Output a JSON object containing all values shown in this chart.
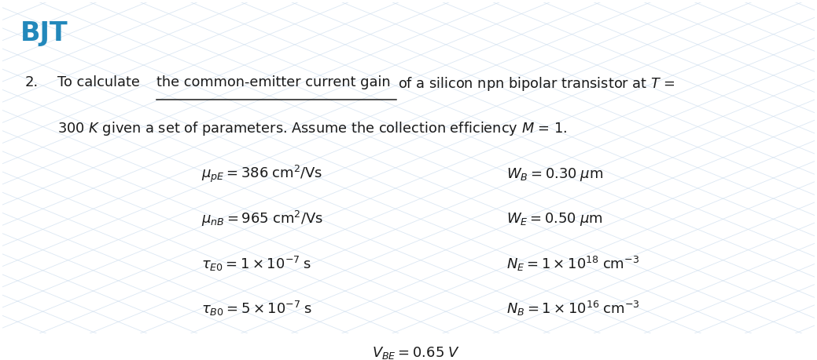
{
  "title": "BJT",
  "title_color": "#2288BB",
  "bg_color": "#FFFFFF",
  "grid_color": "#CCDDEE",
  "text_color": "#1a1a1a",
  "figsize": [
    10.39,
    4.59
  ],
  "dpi": 100,
  "left_params": [
    "$\\mu_{pE} = 386\\;\\mathrm{cm^2/Vs}$",
    "$\\mu_{nB} = 965\\;\\mathrm{cm^2/Vs}$",
    "$\\tau_{E0} = 1 \\times 10^{-7}\\;\\mathrm{s}$",
    "$\\tau_{B0} = 5 \\times 10^{-7}\\;\\mathrm{s}$"
  ],
  "right_params": [
    "$W_B = 0.30\\;\\mu\\mathrm{m}$",
    "$W_E = 0.50\\;\\mu\\mathrm{m}$",
    "$N_E = 1 \\times 10^{18}\\;\\mathrm{cm^{-3}}$",
    "$N_B = 1 \\times 10^{16}\\;\\mathrm{cm^{-3}}$"
  ],
  "bottom_param": "$V_{BE} = 0.65\\;V$"
}
